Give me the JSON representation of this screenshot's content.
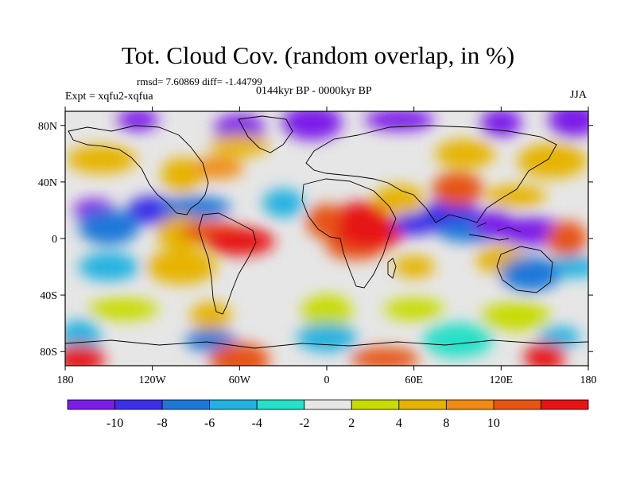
{
  "header": {
    "title": "Tot. Cloud Cov. (random overlap, in %)",
    "stats": "rmsd= 7.60869 diff= -1.44799",
    "period": "0144kyr BP - 0000kyr BP",
    "expt": "Expt = xqfu2-xqfua",
    "season": "JJA"
  },
  "map": {
    "lon_range": [
      -180,
      180
    ],
    "lat_range": [
      -90,
      90
    ],
    "lon_ticks": [
      {
        "value": -180,
        "label": "180"
      },
      {
        "value": -120,
        "label": "120W"
      },
      {
        "value": -60,
        "label": "60W"
      },
      {
        "value": 0,
        "label": "0"
      },
      {
        "value": 60,
        "label": "60E"
      },
      {
        "value": 120,
        "label": "120E"
      },
      {
        "value": 180,
        "label": "180"
      }
    ],
    "lat_ticks": [
      {
        "value": 80,
        "label": "80N"
      },
      {
        "value": 40,
        "label": "40N"
      },
      {
        "value": 0,
        "label": "0"
      },
      {
        "value": -40,
        "label": "40S"
      },
      {
        "value": -80,
        "label": "80S"
      }
    ],
    "features": [
      {
        "lon": -130,
        "lat": 84,
        "level": -11
      },
      {
        "lon": -60,
        "lat": 78,
        "level": -11
      },
      {
        "lon": -10,
        "lat": 82,
        "level": -11
      },
      {
        "lon": 50,
        "lat": 84,
        "level": -11
      },
      {
        "lon": 120,
        "lat": 82,
        "level": -11
      },
      {
        "lon": 170,
        "lat": 84,
        "level": -11
      },
      {
        "lon": -60,
        "lat": 66,
        "level": 5
      },
      {
        "lon": -155,
        "lat": 56,
        "level": 5
      },
      {
        "lon": -100,
        "lat": 45,
        "level": 5
      },
      {
        "lon": -75,
        "lat": 50,
        "level": 8
      },
      {
        "lon": 95,
        "lat": 60,
        "level": 5
      },
      {
        "lon": 155,
        "lat": 55,
        "level": 5
      },
      {
        "lon": -160,
        "lat": 20,
        "level": -11
      },
      {
        "lon": -120,
        "lat": 20,
        "level": -9
      },
      {
        "lon": -150,
        "lat": 8,
        "level": -7
      },
      {
        "lon": -90,
        "lat": 22,
        "level": -7
      },
      {
        "lon": -30,
        "lat": 25,
        "level": -5
      },
      {
        "lon": -100,
        "lat": 4,
        "level": 5
      },
      {
        "lon": -80,
        "lat": 5,
        "level": 9
      },
      {
        "lon": -60,
        "lat": -2,
        "level": 11
      },
      {
        "lon": 0,
        "lat": 12,
        "level": 9
      },
      {
        "lon": 25,
        "lat": 18,
        "level": 11
      },
      {
        "lon": 20,
        "lat": -5,
        "level": 9
      },
      {
        "lon": 30,
        "lat": 5,
        "level": 11
      },
      {
        "lon": 60,
        "lat": 10,
        "level": -9
      },
      {
        "lon": 50,
        "lat": 28,
        "level": 5
      },
      {
        "lon": 85,
        "lat": 15,
        "level": -9
      },
      {
        "lon": 100,
        "lat": 5,
        "level": -7
      },
      {
        "lon": 115,
        "lat": 10,
        "level": -11
      },
      {
        "lon": 90,
        "lat": 35,
        "level": 9
      },
      {
        "lon": 130,
        "lat": 30,
        "level": 5
      },
      {
        "lon": 140,
        "lat": 5,
        "level": -11
      },
      {
        "lon": 165,
        "lat": 0,
        "level": 9
      },
      {
        "lon": 170,
        "lat": -20,
        "level": -5
      },
      {
        "lon": -150,
        "lat": -20,
        "level": -5
      },
      {
        "lon": -100,
        "lat": -20,
        "level": 5
      },
      {
        "lon": 60,
        "lat": -20,
        "level": 5
      },
      {
        "lon": 120,
        "lat": -15,
        "level": 5
      },
      {
        "lon": 140,
        "lat": -25,
        "level": -7
      },
      {
        "lon": -140,
        "lat": -50,
        "level": 3
      },
      {
        "lon": -80,
        "lat": -55,
        "level": 5
      },
      {
        "lon": 0,
        "lat": -52,
        "level": 3
      },
      {
        "lon": 60,
        "lat": -50,
        "level": 3
      },
      {
        "lon": 130,
        "lat": -55,
        "level": 3
      },
      {
        "lon": -170,
        "lat": -70,
        "level": -5
      },
      {
        "lon": -80,
        "lat": -72,
        "level": -7
      },
      {
        "lon": 0,
        "lat": -70,
        "level": -5
      },
      {
        "lon": 90,
        "lat": -72,
        "level": -3
      },
      {
        "lon": 160,
        "lat": -70,
        "level": -5
      },
      {
        "lon": -170,
        "lat": -85,
        "level": 11
      },
      {
        "lon": -60,
        "lat": -86,
        "level": 9
      },
      {
        "lon": 40,
        "lat": -85,
        "level": 9
      },
      {
        "lon": 150,
        "lat": -84,
        "level": 11
      }
    ]
  },
  "colorbar": {
    "colors": [
      "#7b1ce8",
      "#3b2fe8",
      "#1f78d8",
      "#23b2e0",
      "#27e0c8",
      "#e6e6e6",
      "#c8dc00",
      "#e6b400",
      "#f08c14",
      "#e65514",
      "#e61414"
    ],
    "labels": [
      "-10",
      "-8",
      "-6",
      "-4",
      "-2",
      "2",
      "4",
      "8",
      "10"
    ],
    "level_bins": [
      -11,
      -9,
      -7,
      -5,
      -3,
      0,
      3,
      5,
      7,
      9,
      11
    ]
  }
}
